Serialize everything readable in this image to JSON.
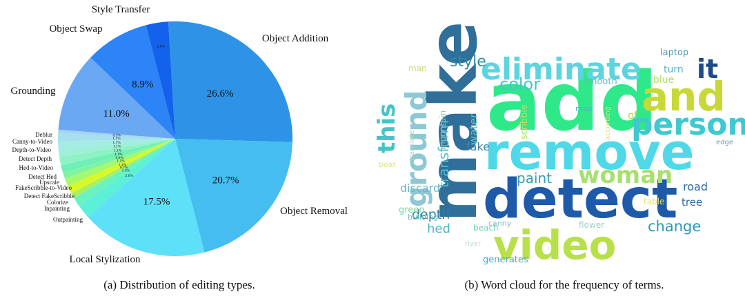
{
  "chart_data": [
    {
      "type": "pie",
      "caption": "(a) Distribution of editing types.",
      "slices": [
        {
          "label": "Object Addition",
          "pct_label": "26.6%",
          "value": 26.6,
          "color": "#2e93e6"
        },
        {
          "label": "Object Removal",
          "pct_label": "20.7%",
          "value": 20.7,
          "color": "#45bdf0"
        },
        {
          "label": "Local Stylization",
          "pct_label": "17.5%",
          "value": 17.5,
          "color": "#5ee0f8"
        },
        {
          "label": "Outpainting",
          "pct_label": "2.0%",
          "value": 2.0,
          "color": "#5cf0d8"
        },
        {
          "label": "Inpainting",
          "pct_label": "1.3%",
          "value": 1.3,
          "color": "#6af2c0"
        },
        {
          "label": "Colorize",
          "pct_label": "0.7%",
          "value": 0.7,
          "color": "#a8f060"
        },
        {
          "label": "Detect FakeScribble",
          "pct_label": "1.1%",
          "value": 1.1,
          "color": "#d8f82a"
        },
        {
          "label": "FakeScribble-to-Video",
          "pct_label": "1.1%",
          "value": 1.1,
          "color": "#a6f86e"
        },
        {
          "label": "Upscale",
          "pct_label": "0.8%",
          "value": 0.8,
          "color": "#80f4a0"
        },
        {
          "label": "Detect Hed",
          "pct_label": "1.1%",
          "value": 1.1,
          "color": "#6ef0b6"
        },
        {
          "label": "Hed-to-Video",
          "pct_label": "1.1%",
          "value": 1.1,
          "color": "#8ef2c4"
        },
        {
          "label": "Detect Depth",
          "pct_label": "1.1%",
          "value": 1.1,
          "color": "#9ef0d6"
        },
        {
          "label": "Depth-to-Video",
          "pct_label": "1.1%",
          "value": 1.1,
          "color": "#a4ece4"
        },
        {
          "label": "Canny-to-Video",
          "pct_label": "1.1%",
          "value": 1.1,
          "color": "#a6e0ee"
        },
        {
          "label": "Deblur",
          "pct_label": "0.5%",
          "value": 0.5,
          "color": "#a8d2f2"
        },
        {
          "label": "Grounding",
          "pct_label": "11.0%",
          "value": 11.0,
          "color": "#6aa8f4"
        },
        {
          "label": "Object Swap",
          "pct_label": "8.9%",
          "value": 8.9,
          "color": "#2c84f6"
        },
        {
          "label": "Style Transfer",
          "pct_label": "3.1%",
          "value": 3.1,
          "color": "#1462ec"
        }
      ]
    },
    {
      "type": "wordcloud",
      "caption": "(b) Word cloud for the frequency of terms.",
      "words": [
        {
          "text": "add",
          "color": "#2ee88a"
        },
        {
          "text": "make",
          "color": "#2f6f9a"
        },
        {
          "text": "remove",
          "color": "#4fd8e8"
        },
        {
          "text": "detect",
          "color": "#1e5aa8"
        },
        {
          "text": "video",
          "color": "#b8e048"
        },
        {
          "text": "eliminate",
          "color": "#5dd4e0"
        },
        {
          "text": "and",
          "color": "#c8d838"
        },
        {
          "text": "person",
          "color": "#3ec8d0"
        },
        {
          "text": "it",
          "color": "#1e4a88"
        },
        {
          "text": "this",
          "color": "#48c4c8"
        },
        {
          "text": "ground",
          "color": "#8ec8d4"
        },
        {
          "text": "woman",
          "color": "#a8e070"
        },
        {
          "text": "color",
          "color": "#40c8c4"
        },
        {
          "text": "style",
          "color": "#2e8ca8"
        },
        {
          "text": "transform",
          "color": "#50c0d0"
        },
        {
          "text": "paint",
          "color": "#3a9cb8"
        },
        {
          "text": "change",
          "color": "#2c98b8"
        },
        {
          "text": "depth",
          "color": "#2e7aa8"
        },
        {
          "text": "discard",
          "color": "#66b8c8"
        },
        {
          "text": "fake",
          "color": "#3e84b0"
        },
        {
          "text": "water",
          "color": "#62c8c8"
        },
        {
          "text": "road",
          "color": "#2e6aa0"
        },
        {
          "text": "tree",
          "color": "#2e6aa0"
        },
        {
          "text": "hed",
          "color": "#48b8c8"
        },
        {
          "text": "green",
          "color": "#7ed8a0"
        },
        {
          "text": "laptop",
          "color": "#4a9cb8"
        },
        {
          "text": "turn",
          "color": "#5ab0c8"
        },
        {
          "text": "blue",
          "color": "#b0e060"
        },
        {
          "text": "smooth",
          "color": "#62b8c8"
        },
        {
          "text": "of",
          "color": "#b8d048"
        },
        {
          "text": "map",
          "color": "#5ab0c0"
        },
        {
          "text": "according",
          "color": "#d8e078"
        },
        {
          "text": "scribble",
          "color": "#b8e068"
        },
        {
          "text": "mountain",
          "color": "#8cc0b8"
        },
        {
          "text": "man",
          "color": "#c8e080"
        },
        {
          "text": "translate",
          "color": "#a8d8c8"
        },
        {
          "text": "boat",
          "color": "#e0e478"
        },
        {
          "text": "building",
          "color": "#6cc0c0"
        },
        {
          "text": "beach",
          "color": "#78d0b8"
        },
        {
          "text": "canny",
          "color": "#8ab8c8"
        },
        {
          "text": "flower",
          "color": "#a0d0c8"
        },
        {
          "text": "river",
          "color": "#b8d8d0"
        },
        {
          "text": "table",
          "color": "#e0e070"
        },
        {
          "text": "edge",
          "color": "#6a98b0"
        },
        {
          "text": "generates",
          "color": "#3aaccc"
        }
      ]
    }
  ]
}
